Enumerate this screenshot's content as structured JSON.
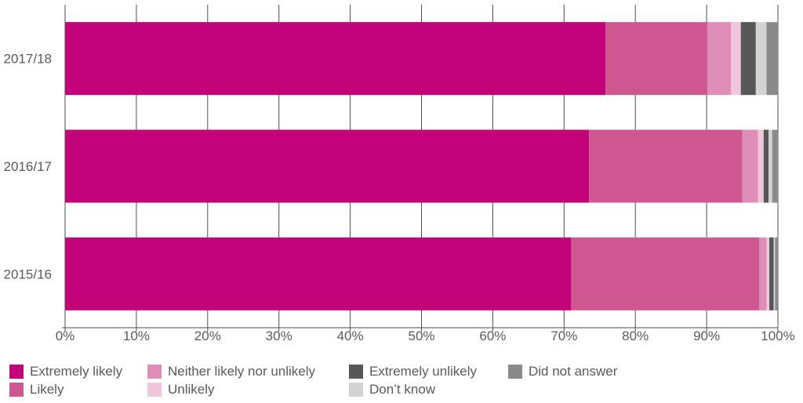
{
  "chart_data": {
    "type": "bar",
    "orientation": "horizontal",
    "stacked": true,
    "title": "",
    "xlabel": "",
    "ylabel": "",
    "xlim": [
      0,
      100
    ],
    "x_ticks": [
      "0%",
      "10%",
      "20%",
      "30%",
      "40%",
      "50%",
      "60%",
      "70%",
      "80%",
      "90%",
      "100%"
    ],
    "categories": [
      "2017/18",
      "2016/17",
      "2015/16"
    ],
    "grid": "vertical",
    "legend_position": "bottom",
    "series": [
      {
        "name": "Extremely likely",
        "color": "#c2037a",
        "values": [
          75.8,
          73.5,
          71.0
        ]
      },
      {
        "name": "Likely",
        "color": "#cf5893",
        "values": [
          14.3,
          21.5,
          26.4
        ]
      },
      {
        "name": "Neither likely nor unlikely",
        "color": "#de8eb6",
        "values": [
          3.3,
          2.2,
          1.0
        ]
      },
      {
        "name": "Unlikely",
        "color": "#f0c7da",
        "values": [
          1.4,
          0.8,
          0.4
        ]
      },
      {
        "name": "Extremely unlikely",
        "color": "#575757",
        "values": [
          2.1,
          0.7,
          0.6
        ]
      },
      {
        "name": "Don’t know",
        "color": "#d3d3d3",
        "values": [
          1.5,
          0.5,
          0.2
        ]
      },
      {
        "name": "Did not answer",
        "color": "#8a8a8a",
        "values": [
          1.6,
          0.8,
          0.4
        ]
      }
    ]
  },
  "legend": {
    "items": [
      {
        "label": "Extremely likely",
        "color": "#c2037a"
      },
      {
        "label": "Likely",
        "color": "#cf5893"
      },
      {
        "label": "Neither likely nor unlikely",
        "color": "#de8eb6"
      },
      {
        "label": "Unlikely",
        "color": "#f0c7da"
      },
      {
        "label": "Extremely unlikely",
        "color": "#575757"
      },
      {
        "label": "Don’t know",
        "color": "#d3d3d3"
      },
      {
        "label": "Did not answer",
        "color": "#8a8a8a"
      }
    ]
  }
}
